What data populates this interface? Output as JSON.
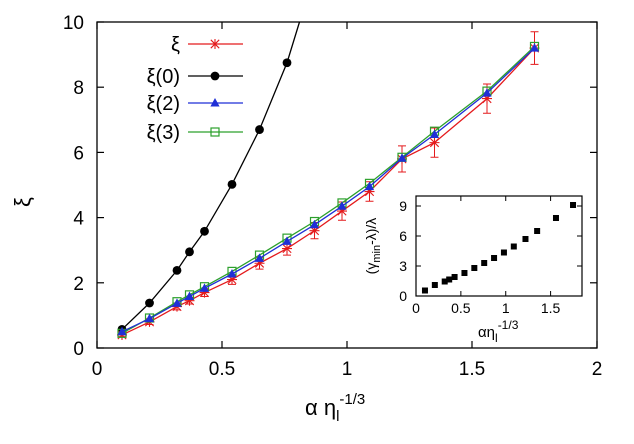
{
  "chart_data": [
    {
      "type": "line",
      "xlabel": "α η",
      "xlabel_sub": "l",
      "xlabel_sup": "-1/3",
      "ylabel": "ξ",
      "xlim": [
        0,
        2
      ],
      "ylim": [
        0,
        10
      ],
      "xticks": [
        "0",
        "0.5",
        "1",
        "1.5",
        "2"
      ],
      "yticks": [
        "0",
        "2",
        "4",
        "6",
        "8",
        "10"
      ],
      "legend_position": "top-left",
      "series": [
        {
          "name": "ξ",
          "color": "#e41a1c",
          "marker": "star",
          "x": [
            0.1,
            0.21,
            0.32,
            0.37,
            0.43,
            0.54,
            0.65,
            0.76,
            0.87,
            0.98,
            1.09,
            1.22,
            1.35,
            1.56,
            1.75
          ],
          "y": [
            0.4,
            0.8,
            1.27,
            1.45,
            1.7,
            2.1,
            2.6,
            3.05,
            3.6,
            4.2,
            4.8,
            5.8,
            6.3,
            7.65,
            9.2
          ],
          "err": [
            0.05,
            0.08,
            0.1,
            0.1,
            0.12,
            0.15,
            0.18,
            0.2,
            0.25,
            0.28,
            0.3,
            0.4,
            0.45,
            0.45,
            0.5
          ]
        },
        {
          "name": "ξ(0)",
          "color": "#000000",
          "marker": "circle",
          "x": [
            0.1,
            0.21,
            0.32,
            0.37,
            0.43,
            0.54,
            0.65,
            0.76
          ],
          "y": [
            0.57,
            1.38,
            2.38,
            2.95,
            3.58,
            5.02,
            6.7,
            8.75
          ],
          "curve_to": [
            0.81,
            10
          ]
        },
        {
          "name": "ξ(2)",
          "color": "#1f2fd6",
          "marker": "triangle",
          "x": [
            0.1,
            0.21,
            0.32,
            0.37,
            0.43,
            0.54,
            0.65,
            0.76,
            0.87,
            0.98,
            1.09,
            1.22,
            1.35,
            1.56,
            1.75
          ],
          "y": [
            0.5,
            0.9,
            1.37,
            1.58,
            1.83,
            2.27,
            2.75,
            3.27,
            3.78,
            4.35,
            4.95,
            5.82,
            6.55,
            7.82,
            9.2
          ]
        },
        {
          "name": "ξ(3)",
          "color": "#2ca02c",
          "marker": "square-open",
          "x": [
            0.1,
            0.21,
            0.32,
            0.37,
            0.43,
            0.54,
            0.65,
            0.76,
            0.87,
            0.98,
            1.09,
            1.22,
            1.35,
            1.56,
            1.75
          ],
          "y": [
            0.45,
            0.92,
            1.42,
            1.63,
            1.88,
            2.35,
            2.85,
            3.37,
            3.88,
            4.45,
            5.05,
            5.85,
            6.65,
            7.88,
            9.25
          ]
        }
      ]
    },
    {
      "type": "scatter",
      "position": "inset-bottom-right",
      "xlabel": "αη",
      "xlabel_sub": "l",
      "xlabel_sup": "-1/3",
      "ylabel": "(γ",
      "ylabel_sub": "min",
      "ylabel_rest": "-λ)/λ",
      "xlim": [
        0,
        1.85
      ],
      "ylim": [
        0,
        10
      ],
      "xticks": [
        "0",
        "0.5",
        "1",
        "1.5"
      ],
      "yticks": [
        "0",
        "3",
        "6",
        "9"
      ],
      "series": [
        {
          "marker": "square-filled",
          "color": "#000000",
          "x": [
            0.1,
            0.21,
            0.32,
            0.37,
            0.43,
            0.54,
            0.65,
            0.76,
            0.87,
            0.98,
            1.09,
            1.22,
            1.35,
            1.56,
            1.75
          ],
          "y": [
            0.55,
            1.1,
            1.45,
            1.65,
            1.9,
            2.3,
            2.8,
            3.3,
            3.8,
            4.35,
            4.95,
            5.7,
            6.5,
            7.8,
            9.1
          ]
        }
      ]
    }
  ]
}
